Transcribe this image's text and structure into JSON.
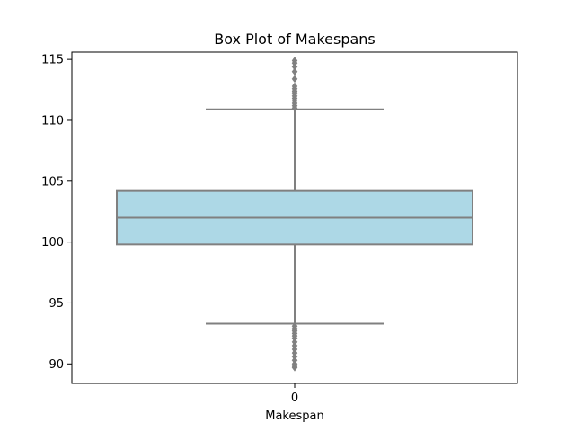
{
  "chart_data": {
    "type": "box",
    "title": "Box Plot of Makespans",
    "xlabel": "Makespan",
    "ylabel": "",
    "categories": [
      "0"
    ],
    "ylim": [
      88.4,
      115.6
    ],
    "yticks": [
      90,
      95,
      100,
      105,
      110,
      115
    ],
    "grid": false,
    "box": {
      "whisker_low": 93.3,
      "q1": 99.8,
      "median": 102.0,
      "q3": 104.2,
      "whisker_high": 110.9
    },
    "outliers_high": [
      111.0,
      111.2,
      111.4,
      111.6,
      111.8,
      112.0,
      112.2,
      112.4,
      112.6,
      112.8,
      113.4,
      114.0,
      114.4,
      114.7,
      114.9
    ],
    "outliers_low": [
      93.1,
      92.9,
      92.7,
      92.5,
      92.3,
      92.1,
      91.8,
      91.5,
      91.2,
      90.9,
      90.6,
      90.3,
      90.0,
      89.8,
      89.7
    ],
    "colors": {
      "box_fill": "#add8e6",
      "line": "#808080",
      "outlier": "#808080",
      "axes": "#000000"
    }
  }
}
